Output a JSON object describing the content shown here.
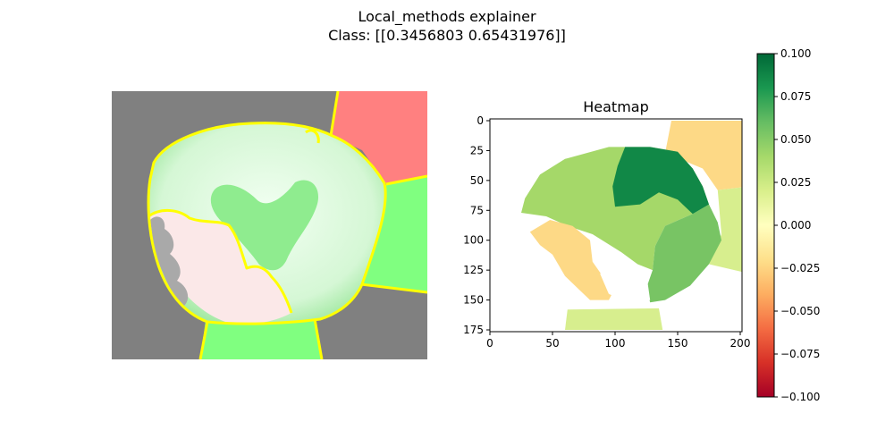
{
  "figure": {
    "title": "Local_methods explainer",
    "subtitle": "Class: [[0.3456803  0.65431976]]"
  },
  "chart_data": [
    {
      "type": "image",
      "panel": "overlay",
      "description_colors": {
        "background": "#808080",
        "positive_region": "#80ff80",
        "negative_region": "#ff8080",
        "boundary": "#ffff00"
      }
    },
    {
      "type": "heatmap",
      "title": "Heatmap",
      "xlim": [
        0,
        208
      ],
      "ylim": [
        175,
        0
      ],
      "xticks": [
        "0",
        "50",
        "100",
        "150",
        "200"
      ],
      "yticks": [
        "0",
        "25",
        "50",
        "75",
        "100",
        "125",
        "150",
        "175"
      ],
      "colormap": "RdYlGn",
      "color_range": [
        -0.1,
        0.1
      ],
      "colorbar_ticks": [
        "0.100",
        "0.075",
        "0.050",
        "0.025",
        "0.000",
        "−0.025",
        "−0.050",
        "−0.075",
        "−0.100"
      ],
      "segments": [
        {
          "name": "upper-right",
          "value": -0.025,
          "color": "#fdd986"
        },
        {
          "name": "right",
          "value": 0.015,
          "color": "#d7ee8e"
        },
        {
          "name": "bottom",
          "value": 0.015,
          "color": "#d7ee8e"
        },
        {
          "name": "left-main",
          "value": 0.045,
          "color": "#a5d869"
        },
        {
          "name": "lower-left",
          "value": -0.025,
          "color": "#fdd986"
        },
        {
          "name": "right-brain",
          "value": 0.06,
          "color": "#78c464"
        },
        {
          "name": "top-core",
          "value": 0.09,
          "color": "#118847"
        }
      ]
    }
  ]
}
